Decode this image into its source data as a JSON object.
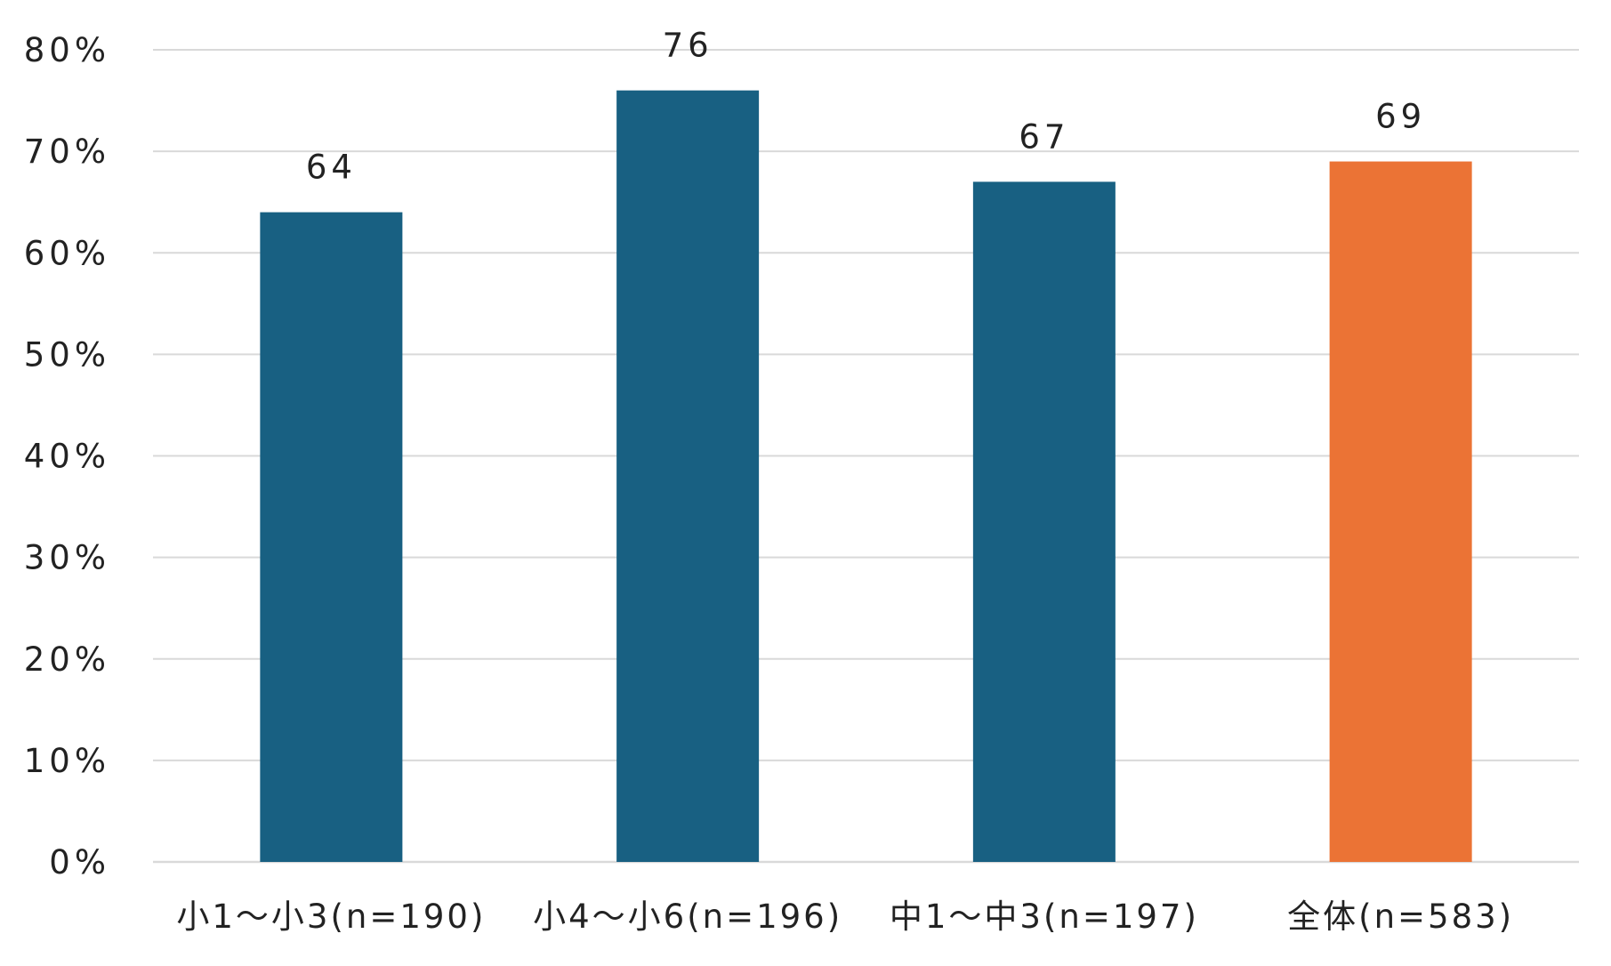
{
  "chart_data": {
    "type": "bar",
    "title": "",
    "xlabel": "",
    "ylabel": "",
    "categories": [
      "小1〜小3(n=190)",
      "小4〜小6(n=196)",
      "中1〜中3(n=197)",
      "全体(n=583)"
    ],
    "series": [
      {
        "values": [
          64,
          76,
          67,
          69
        ],
        "colors": [
          "#186082",
          "#186082",
          "#186082",
          "#eb7335"
        ]
      }
    ],
    "data_labels": [
      "64",
      "76",
      "67",
      "69"
    ],
    "y_ticks": [
      0,
      10,
      20,
      30,
      40,
      50,
      60,
      70,
      80
    ],
    "y_tick_labels": [
      "0%",
      "10%",
      "20%",
      "30%",
      "40%",
      "50%",
      "60%",
      "70%",
      "80%"
    ],
    "ylim": [
      0,
      80
    ],
    "grid": true,
    "legend": "none"
  }
}
